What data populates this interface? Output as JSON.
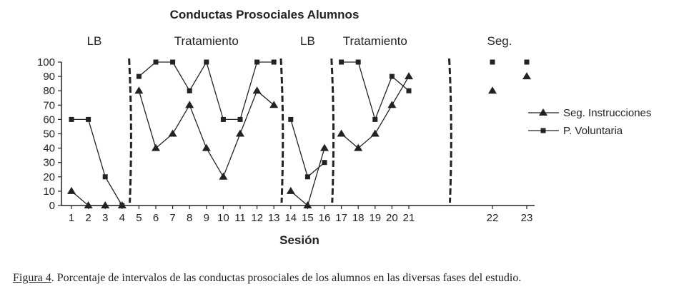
{
  "chart_data": {
    "type": "line",
    "title": "Conductas Prosociales Alumnos",
    "xlabel": "Sesión",
    "ylabel": "",
    "ylim": [
      0,
      100
    ],
    "yticks": [
      0,
      10,
      20,
      30,
      40,
      50,
      60,
      70,
      80,
      90,
      100
    ],
    "x": [
      1,
      2,
      3,
      4,
      5,
      6,
      7,
      8,
      9,
      10,
      11,
      12,
      13,
      14,
      15,
      16,
      17,
      18,
      19,
      20,
      21,
      22,
      23
    ],
    "phases": [
      {
        "label": "LB",
        "sessions": [
          1,
          4
        ]
      },
      {
        "label": "Tratamiento",
        "sessions": [
          5,
          13
        ]
      },
      {
        "label": "LB",
        "sessions": [
          14,
          16
        ]
      },
      {
        "label": "Tratamiento",
        "sessions": [
          17,
          21
        ]
      },
      {
        "label": "Seg.",
        "sessions": [
          22,
          23
        ]
      }
    ],
    "series": [
      {
        "name": "Seg. Instrucciones",
        "marker": "triangle",
        "values": [
          10,
          0,
          0,
          0,
          80,
          40,
          50,
          70,
          40,
          20,
          50,
          80,
          70,
          10,
          0,
          40,
          50,
          40,
          50,
          70,
          90,
          80,
          90
        ]
      },
      {
        "name": "P. Voluntaria",
        "marker": "square",
        "values": [
          60,
          60,
          20,
          0,
          90,
          100,
          100,
          80,
          100,
          60,
          60,
          100,
          100,
          60,
          20,
          30,
          100,
          100,
          60,
          90,
          80,
          100,
          100
        ]
      }
    ],
    "legend": "right",
    "grid": false,
    "colors": {
      "ink": "#222222"
    }
  },
  "caption": {
    "figure_ref": "Figura 4",
    "text": ". Porcentaje de intervalos de las conductas prosociales de los alumnos en las diversas fases del estudio."
  }
}
